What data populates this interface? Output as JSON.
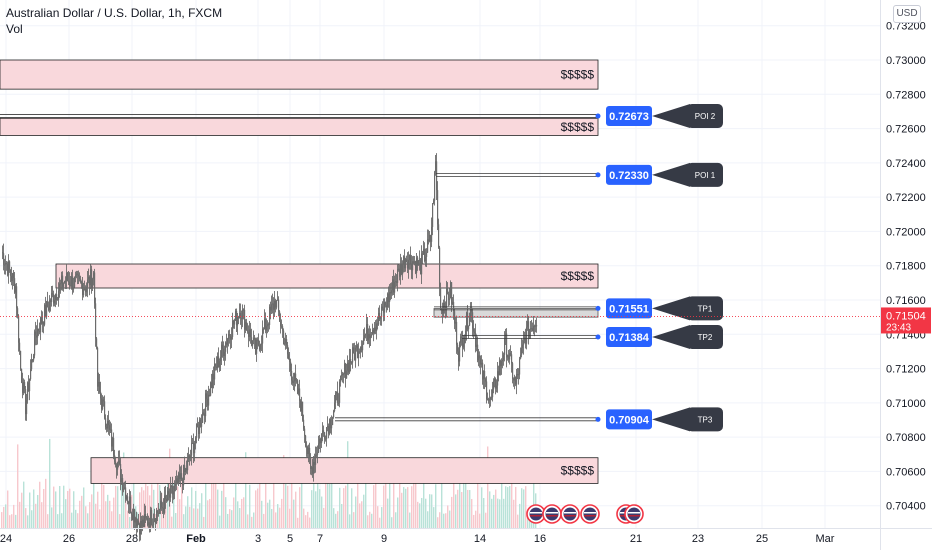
{
  "header": {
    "title": "Australian Dollar / U.S. Dollar, 1h, FXCM",
    "volume_label": "Vol",
    "currency_button": "USD"
  },
  "colors": {
    "candle": "#6b6b6b",
    "zone_fill": "#f9d8dc",
    "zone_border": "#222222",
    "tag_blue": "#2962ff",
    "tag_dark": "#363a45",
    "price_red": "#f23645",
    "grid": "#f0f3fa",
    "axis_text": "#131722",
    "volume_up": "#b9e2d8",
    "volume_down": "#f7c8cd"
  },
  "chart_data": {
    "type": "candlestick",
    "symbol": "AUDUSD",
    "timeframe": "1h",
    "y_axis": {
      "range": [
        0.7027,
        0.7335
      ],
      "ticks": [
        "0.70400",
        "0.70600",
        "0.70800",
        "0.71000",
        "0.71200",
        "0.71400",
        "0.71600",
        "0.71800",
        "0.72000",
        "0.72200",
        "0.72400",
        "0.72600",
        "0.72800",
        "0.73000",
        "0.73200"
      ]
    },
    "x_axis": {
      "labels": [
        "24",
        "26",
        "28",
        "Feb",
        "3",
        "5",
        "7",
        "9",
        "14",
        "16",
        "21",
        "23",
        "25",
        "Mar"
      ]
    },
    "current_price": {
      "value": "0.71504",
      "countdown": "23:43"
    },
    "zones": [
      {
        "label": "$$$$$",
        "low": 0.7283,
        "high": 0.73
      },
      {
        "label": "$$$$$",
        "low": 0.7256,
        "high": 0.7266
      },
      {
        "label": "$$$$$",
        "low": 0.7167,
        "high": 0.7181
      },
      {
        "label": "$$$$$",
        "low": 0.7053,
        "high": 0.7068
      }
    ],
    "gray_zones": [
      {
        "low": 0.715,
        "high": 0.7155
      }
    ],
    "levels": [
      {
        "value": "0.72673",
        "tag": "POI 2"
      },
      {
        "value": "0.72330",
        "tag": "POI 1"
      },
      {
        "value": "0.71551",
        "tag": "TP1"
      },
      {
        "value": "0.71384",
        "tag": "TP2"
      },
      {
        "value": "0.70904",
        "tag": "TP3"
      }
    ],
    "price_path": [
      [
        0.7188,
        1
      ],
      [
        0.7168,
        15
      ],
      [
        0.712,
        20
      ],
      [
        0.7098,
        25
      ],
      [
        0.714,
        35
      ],
      [
        0.716,
        50
      ],
      [
        0.7172,
        65
      ],
      [
        0.7168,
        85
      ],
      [
        0.7175,
        93
      ],
      [
        0.711,
        97
      ],
      [
        0.708,
        110
      ],
      [
        0.7058,
        120
      ],
      [
        0.704,
        130
      ],
      [
        0.7028,
        140
      ],
      [
        0.7038,
        160
      ],
      [
        0.705,
        175
      ],
      [
        0.706,
        185
      ],
      [
        0.709,
        200
      ],
      [
        0.712,
        215
      ],
      [
        0.714,
        228
      ],
      [
        0.7155,
        240
      ],
      [
        0.713,
        255
      ],
      [
        0.716,
        275
      ],
      [
        0.712,
        290
      ],
      [
        0.71,
        300
      ],
      [
        0.706,
        310
      ],
      [
        0.708,
        320
      ],
      [
        0.709,
        330
      ],
      [
        0.712,
        345
      ],
      [
        0.714,
        365
      ],
      [
        0.715,
        380
      ],
      [
        0.7172,
        395
      ],
      [
        0.7185,
        405
      ],
      [
        0.718,
        420
      ],
      [
        0.7195,
        430
      ],
      [
        0.724,
        435
      ],
      [
        0.7155,
        440
      ],
      [
        0.7165,
        450
      ],
      [
        0.713,
        458
      ],
      [
        0.7155,
        470
      ],
      [
        0.712,
        480
      ],
      [
        0.71,
        490
      ],
      [
        0.7135,
        505
      ],
      [
        0.711,
        515
      ],
      [
        0.714,
        525
      ],
      [
        0.715,
        537
      ]
    ],
    "event_icons": 6
  }
}
